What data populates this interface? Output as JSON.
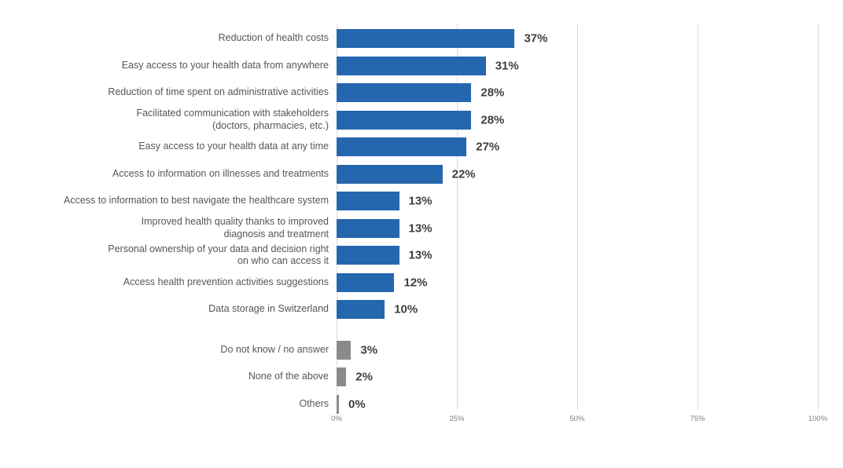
{
  "chart_data": {
    "type": "bar",
    "orientation": "horizontal",
    "title": "",
    "xlabel": "",
    "ylabel": "",
    "xlim": [
      0,
      100
    ],
    "x_ticks": [
      "0%",
      "25%",
      "50%",
      "75%",
      "100%"
    ],
    "grid": "vertical-lines",
    "legend": "none",
    "colors": {
      "primary_bar": "#2567ae",
      "secondary_bar": "#8a8a8a",
      "value_label_text": "#3f3f3f",
      "category_label_text": "#565656",
      "tick_label_text": "#7f7f7f",
      "gridline": "#dcdcdc"
    },
    "categories": [
      "Reduction of health costs",
      "Easy access to your health data from anywhere",
      "Reduction of time spent on administrative activities",
      "Facilitated communication with stakeholders\n(doctors, pharmacies, etc.)",
      "Easy access to your health data at any time",
      "Access to information on illnesses and treatments",
      "Access to information to best navigate the healthcare system",
      "Improved health quality thanks to improved\ndiagnosis and treatment",
      "Personal ownership of your data and decision right\non who can access it",
      "Access health prevention activities suggestions",
      "Data storage in Switzerland",
      "Do not know / no answer",
      "None of the above",
      "Others"
    ],
    "values": [
      37,
      31,
      28,
      28,
      27,
      22,
      13,
      13,
      13,
      12,
      10,
      3,
      2,
      0
    ],
    "value_labels": [
      "37%",
      "31%",
      "28%",
      "28%",
      "27%",
      "22%",
      "13%",
      "13%",
      "13%",
      "12%",
      "10%",
      "3%",
      "2%",
      "0%"
    ],
    "bar_colors": [
      "#2567ae",
      "#2567ae",
      "#2567ae",
      "#2567ae",
      "#2567ae",
      "#2567ae",
      "#2567ae",
      "#2567ae",
      "#2567ae",
      "#2567ae",
      "#2567ae",
      "#8a8a8a",
      "#8a8a8a",
      "#8a8a8a"
    ],
    "separator_after_index": 10
  }
}
